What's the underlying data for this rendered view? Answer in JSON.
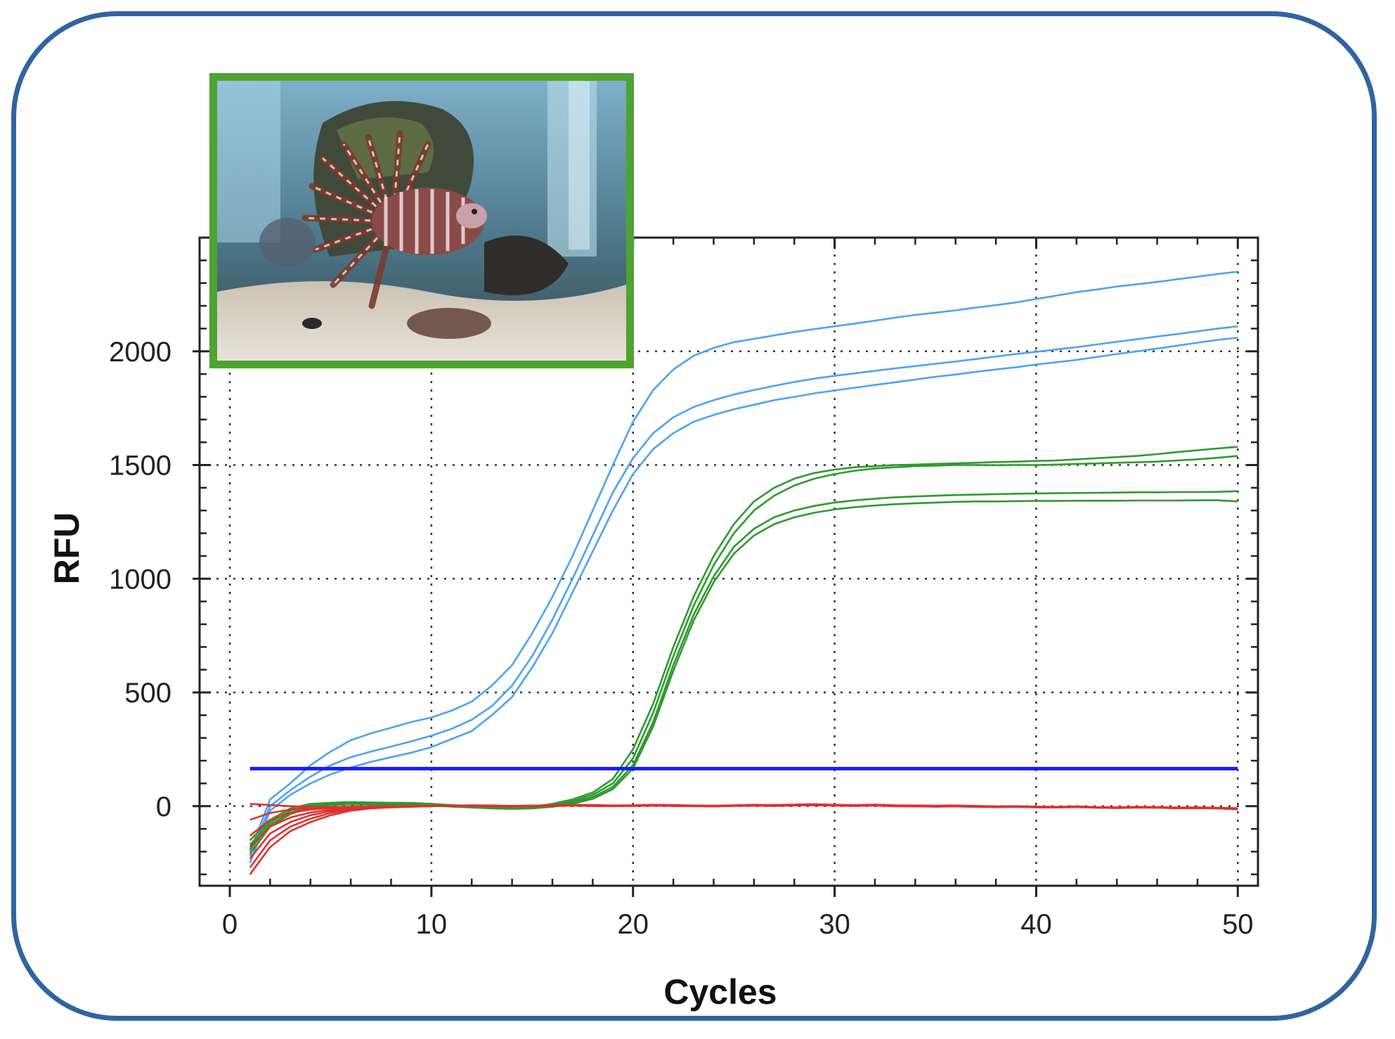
{
  "photo": {
    "subject": "lionfish-in-aquarium"
  },
  "chart_data": {
    "type": "line",
    "title": "",
    "xlabel": "Cycles",
    "ylabel": "RFU",
    "xlim": [
      -1.5,
      51
    ],
    "ylim": [
      -350,
      2500
    ],
    "xticks": [
      0,
      10,
      20,
      30,
      40,
      50
    ],
    "yticks": [
      0,
      500,
      1000,
      1500,
      2000
    ],
    "grid": true,
    "threshold": 165,
    "x": [
      1,
      2,
      3,
      4,
      5,
      6,
      7,
      8,
      9,
      10,
      11,
      12,
      13,
      14,
      15,
      16,
      17,
      18,
      19,
      20,
      21,
      22,
      23,
      24,
      25,
      26,
      27,
      28,
      29,
      30,
      31,
      32,
      33,
      34,
      35,
      36,
      37,
      38,
      39,
      40,
      41,
      42,
      43,
      44,
      45,
      46,
      47,
      48,
      49,
      50
    ],
    "series": [
      {
        "color": "#4da3f2",
        "values": [
          -200,
          30,
          100,
          180,
          240,
          290,
          320,
          345,
          370,
          390,
          420,
          460,
          530,
          620,
          760,
          920,
          1100,
          1300,
          1500,
          1690,
          1830,
          1920,
          1980,
          2015,
          2040,
          2055,
          2070,
          2085,
          2098,
          2110,
          2122,
          2135,
          2148,
          2160,
          2170,
          2180,
          2192,
          2203,
          2215,
          2230,
          2245,
          2260,
          2272,
          2285,
          2295,
          2305,
          2317,
          2328,
          2340,
          2350
        ]
      },
      {
        "color": "#4da3f2",
        "values": [
          -220,
          0,
          70,
          130,
          180,
          215,
          240,
          262,
          285,
          310,
          340,
          380,
          440,
          530,
          660,
          820,
          1000,
          1190,
          1380,
          1530,
          1640,
          1710,
          1755,
          1785,
          1810,
          1830,
          1848,
          1865,
          1880,
          1892,
          1903,
          1914,
          1925,
          1935,
          1945,
          1955,
          1966,
          1977,
          1988,
          1998,
          2008,
          2018,
          2030,
          2042,
          2053,
          2065,
          2076,
          2088,
          2100,
          2110
        ]
      },
      {
        "color": "#4da3f2",
        "values": [
          -250,
          -20,
          50,
          100,
          140,
          170,
          195,
          215,
          235,
          260,
          295,
          330,
          400,
          480,
          610,
          760,
          940,
          1120,
          1300,
          1460,
          1570,
          1640,
          1690,
          1720,
          1745,
          1765,
          1785,
          1800,
          1815,
          1828,
          1840,
          1852,
          1864,
          1876,
          1888,
          1898,
          1910,
          1920,
          1930,
          1942,
          1952,
          1962,
          1975,
          1988,
          2000,
          2012,
          2025,
          2038,
          2050,
          2060
        ]
      },
      {
        "color": "#2f9a2f",
        "values": [
          -150,
          -60,
          -10,
          10,
          15,
          18,
          16,
          15,
          14,
          10,
          5,
          0,
          -2,
          -5,
          -3,
          10,
          30,
          60,
          120,
          250,
          450,
          700,
          920,
          1100,
          1240,
          1340,
          1400,
          1440,
          1465,
          1480,
          1490,
          1495,
          1500,
          1502,
          1505,
          1507,
          1510,
          1513,
          1515,
          1518,
          1520,
          1525,
          1530,
          1535,
          1540,
          1548,
          1557,
          1565,
          1573,
          1580
        ]
      },
      {
        "color": "#2f9a2f",
        "values": [
          -170,
          -70,
          -20,
          5,
          12,
          15,
          14,
          13,
          12,
          8,
          3,
          -2,
          -5,
          -8,
          -6,
          5,
          22,
          50,
          100,
          210,
          410,
          660,
          880,
          1060,
          1200,
          1300,
          1365,
          1410,
          1440,
          1460,
          1475,
          1485,
          1490,
          1495,
          1497,
          1500,
          1500,
          1499,
          1500,
          1500,
          1502,
          1505,
          1507,
          1510,
          1512,
          1515,
          1520,
          1525,
          1532,
          1540
        ]
      },
      {
        "color": "#2f9a2f",
        "values": [
          -190,
          -80,
          -30,
          0,
          8,
          12,
          10,
          9,
          8,
          5,
          0,
          -4,
          -8,
          -10,
          -8,
          0,
          15,
          40,
          85,
          180,
          370,
          620,
          840,
          1010,
          1140,
          1220,
          1270,
          1300,
          1320,
          1335,
          1345,
          1352,
          1358,
          1362,
          1365,
          1368,
          1370,
          1372,
          1374,
          1375,
          1376,
          1377,
          1378,
          1379,
          1380,
          1380,
          1381,
          1381,
          1382,
          1385
        ]
      },
      {
        "color": "#2f9a2f",
        "values": [
          -210,
          -90,
          -35,
          -5,
          5,
          8,
          7,
          6,
          5,
          3,
          -2,
          -6,
          -10,
          -12,
          -10,
          -3,
          10,
          32,
          75,
          165,
          350,
          595,
          815,
          985,
          1110,
          1190,
          1240,
          1270,
          1290,
          1305,
          1315,
          1322,
          1328,
          1332,
          1335,
          1338,
          1340,
          1340,
          1341,
          1342,
          1342,
          1343,
          1343,
          1343,
          1344,
          1344,
          1344,
          1345,
          1345,
          1340
        ]
      },
      {
        "color": "#e03030",
        "values": [
          -300,
          -180,
          -110,
          -70,
          -40,
          -20,
          -10,
          -5,
          -3,
          0,
          2,
          3,
          2,
          0,
          1,
          3,
          5,
          4,
          2,
          3,
          5,
          4,
          2,
          1,
          3,
          5,
          4,
          6,
          8,
          5,
          4,
          6,
          3,
          2,
          1,
          2,
          0,
          -2,
          -1,
          -3,
          -4,
          -2,
          -5,
          -6,
          -4,
          -5,
          -7,
          -6,
          -8,
          -10
        ]
      },
      {
        "color": "#e03030",
        "values": [
          -270,
          -150,
          -90,
          -55,
          -30,
          -15,
          -8,
          -4,
          -2,
          1,
          3,
          4,
          3,
          1,
          2,
          4,
          6,
          5,
          3,
          4,
          6,
          5,
          3,
          2,
          4,
          6,
          5,
          7,
          9,
          6,
          5,
          7,
          4,
          3,
          2,
          3,
          1,
          -1,
          0,
          -2,
          -3,
          -1,
          -4,
          -5,
          -3,
          -4,
          -6,
          -5,
          -7,
          -9
        ]
      },
      {
        "color": "#e03030",
        "values": [
          -230,
          -120,
          -70,
          -40,
          -22,
          -12,
          -6,
          -3,
          -1,
          0,
          2,
          2,
          1,
          0,
          1,
          2,
          4,
          3,
          1,
          2,
          4,
          3,
          1,
          0,
          2,
          4,
          3,
          5,
          7,
          4,
          3,
          5,
          2,
          1,
          0,
          1,
          -1,
          -3,
          -2,
          -4,
          -5,
          -3,
          -6,
          -7,
          -5,
          -6,
          -8,
          -7,
          -9,
          -11
        ]
      },
      {
        "color": "#e03030",
        "values": [
          -180,
          -90,
          -50,
          -28,
          -15,
          -8,
          -4,
          -2,
          0,
          1,
          3,
          3,
          2,
          1,
          2,
          3,
          5,
          4,
          2,
          3,
          5,
          4,
          2,
          1,
          3,
          5,
          4,
          6,
          8,
          5,
          4,
          6,
          3,
          2,
          1,
          2,
          0,
          -2,
          -1,
          -3,
          -4,
          -2,
          -5,
          -6,
          -4,
          -5,
          -7,
          -6,
          -8,
          -10
        ]
      },
      {
        "color": "#e03030",
        "values": [
          -130,
          -60,
          -30,
          -15,
          -8,
          -4,
          -2,
          -1,
          0,
          1,
          2,
          2,
          1,
          0,
          1,
          2,
          3,
          2,
          1,
          2,
          3,
          2,
          1,
          0,
          2,
          3,
          2,
          4,
          5,
          3,
          2,
          4,
          1,
          0,
          -1,
          0,
          -2,
          -3,
          -2,
          -4,
          -5,
          -3,
          -6,
          -7,
          -5,
          -6,
          -8,
          -7,
          -9,
          -12
        ]
      },
      {
        "color": "#e03030",
        "values": [
          -60,
          -30,
          -15,
          -8,
          -4,
          -2,
          -1,
          0,
          0,
          1,
          1,
          1,
          0,
          -1,
          0,
          1,
          2,
          1,
          0,
          1,
          2,
          1,
          0,
          -1,
          1,
          2,
          1,
          3,
          4,
          2,
          1,
          3,
          0,
          -1,
          -2,
          -1,
          -3,
          -4,
          -3,
          -5,
          -6,
          -4,
          -7,
          -8,
          -6,
          -7,
          -9,
          -8,
          -10,
          -13
        ]
      },
      {
        "color": "#e03030",
        "values": [
          10,
          5,
          0,
          -3,
          -4,
          -3,
          -2,
          -1,
          0,
          0,
          1,
          1,
          0,
          -1,
          0,
          1,
          2,
          1,
          0,
          1,
          2,
          1,
          0,
          -1,
          1,
          2,
          1,
          3,
          4,
          2,
          1,
          3,
          0,
          -1,
          -2,
          -1,
          -3,
          -4,
          -3,
          -5,
          -6,
          -4,
          -7,
          -8,
          -6,
          -7,
          -9,
          -8,
          -10,
          -14
        ]
      }
    ]
  }
}
